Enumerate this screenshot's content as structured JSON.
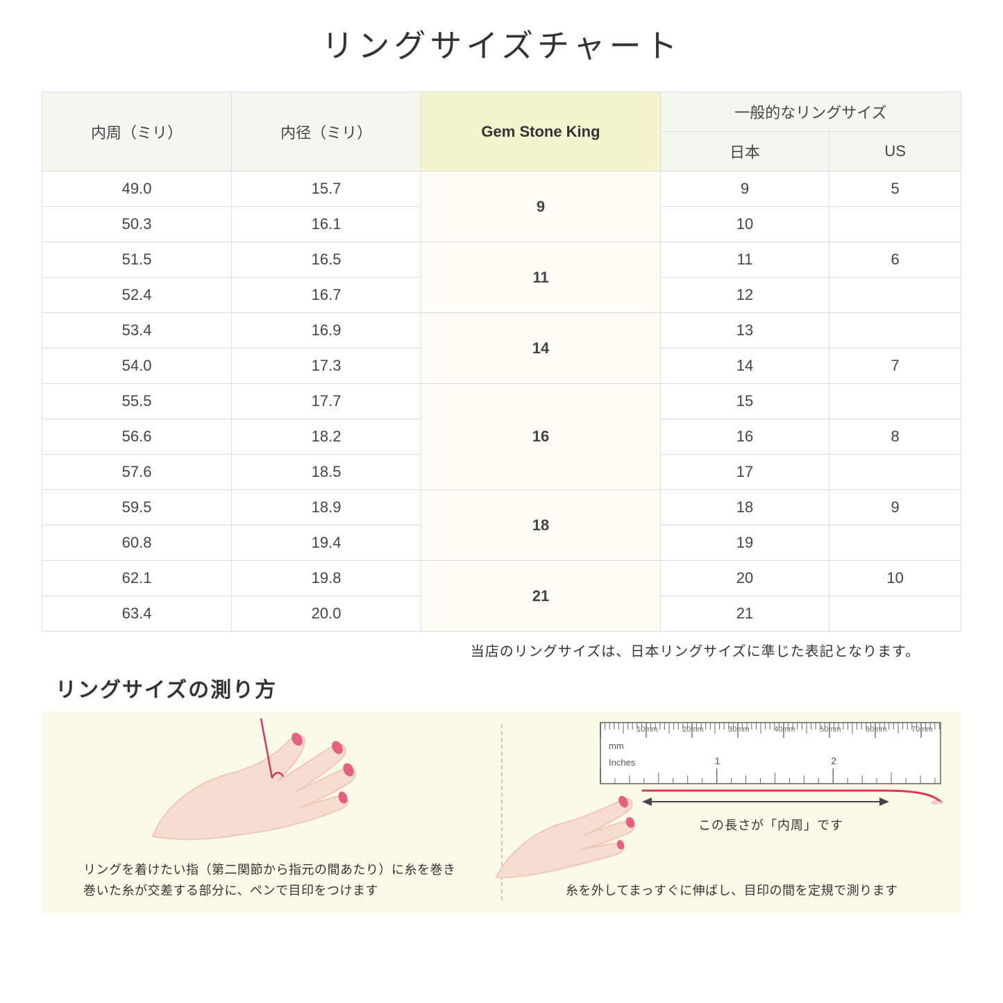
{
  "title": "リングサイズチャート",
  "table": {
    "headers": {
      "col1": "内周（ミリ）",
      "col2": "内径（ミリ）",
      "col3": "Gem Stone King",
      "group": "一般的なリングサイズ",
      "col4": "日本",
      "col5": "US"
    },
    "header_bg": "#f6f6f0",
    "highlight_bg": "#f4f4cf",
    "highlight_cell_bg": "#fdfdf5",
    "border_color": "#dcdcdc",
    "rows": [
      {
        "c": "49.0",
        "d": "15.7",
        "g": "9",
        "gspan": 2,
        "j": "9",
        "u": "5"
      },
      {
        "c": "50.3",
        "d": "16.1",
        "j": "10",
        "u": ""
      },
      {
        "c": "51.5",
        "d": "16.5",
        "g": "11",
        "gspan": 2,
        "j": "11",
        "u": "6"
      },
      {
        "c": "52.4",
        "d": "16.7",
        "j": "12",
        "u": ""
      },
      {
        "c": "53.4",
        "d": "16.9",
        "g": "14",
        "gspan": 2,
        "j": "13",
        "u": ""
      },
      {
        "c": "54.0",
        "d": "17.3",
        "j": "14",
        "u": "7"
      },
      {
        "c": "55.5",
        "d": "17.7",
        "g": "16",
        "gspan": 3,
        "j": "15",
        "u": ""
      },
      {
        "c": "56.6",
        "d": "18.2",
        "j": "16",
        "u": "8"
      },
      {
        "c": "57.6",
        "d": "18.5",
        "j": "17",
        "u": ""
      },
      {
        "c": "59.5",
        "d": "18.9",
        "g": "18",
        "gspan": 2,
        "j": "18",
        "u": "9"
      },
      {
        "c": "60.8",
        "d": "19.4",
        "j": "19",
        "u": ""
      },
      {
        "c": "62.1",
        "d": "19.8",
        "g": "21",
        "gspan": 2,
        "j": "20",
        "u": "10"
      },
      {
        "c": "63.4",
        "d": "20.0",
        "j": "21",
        "u": ""
      }
    ]
  },
  "footnote": "当店のリングサイズは、日本リングサイズに準じた表記となります。",
  "subtitle": "リングサイズの測り方",
  "guide": {
    "bg": "#fbfae9",
    "left_caption_1": "リングを着けたい指（第二関節から指元の間あたり）に糸を巻き",
    "left_caption_2": "巻いた糸が交差する部分に、ペンで目印をつけます",
    "right_label": "この長さが「内周」です",
    "right_caption": "糸を外してまっすぐに伸ばし、目印の間を定規で測ります",
    "ruler": {
      "mm_label": "mm",
      "inches_label": "Inches",
      "marks_mm": [
        "10mm",
        "20mm",
        "30mm",
        "40mm",
        "50mm",
        "60mm",
        "70mm"
      ],
      "inch_marks": [
        "1",
        "2"
      ]
    },
    "colors": {
      "skin": "#f7dcd0",
      "skin_dark": "#eec8b8",
      "nail": "#e8607f",
      "thread": "#d93854",
      "ruler_border": "#888888",
      "arrow": "#444444"
    }
  }
}
